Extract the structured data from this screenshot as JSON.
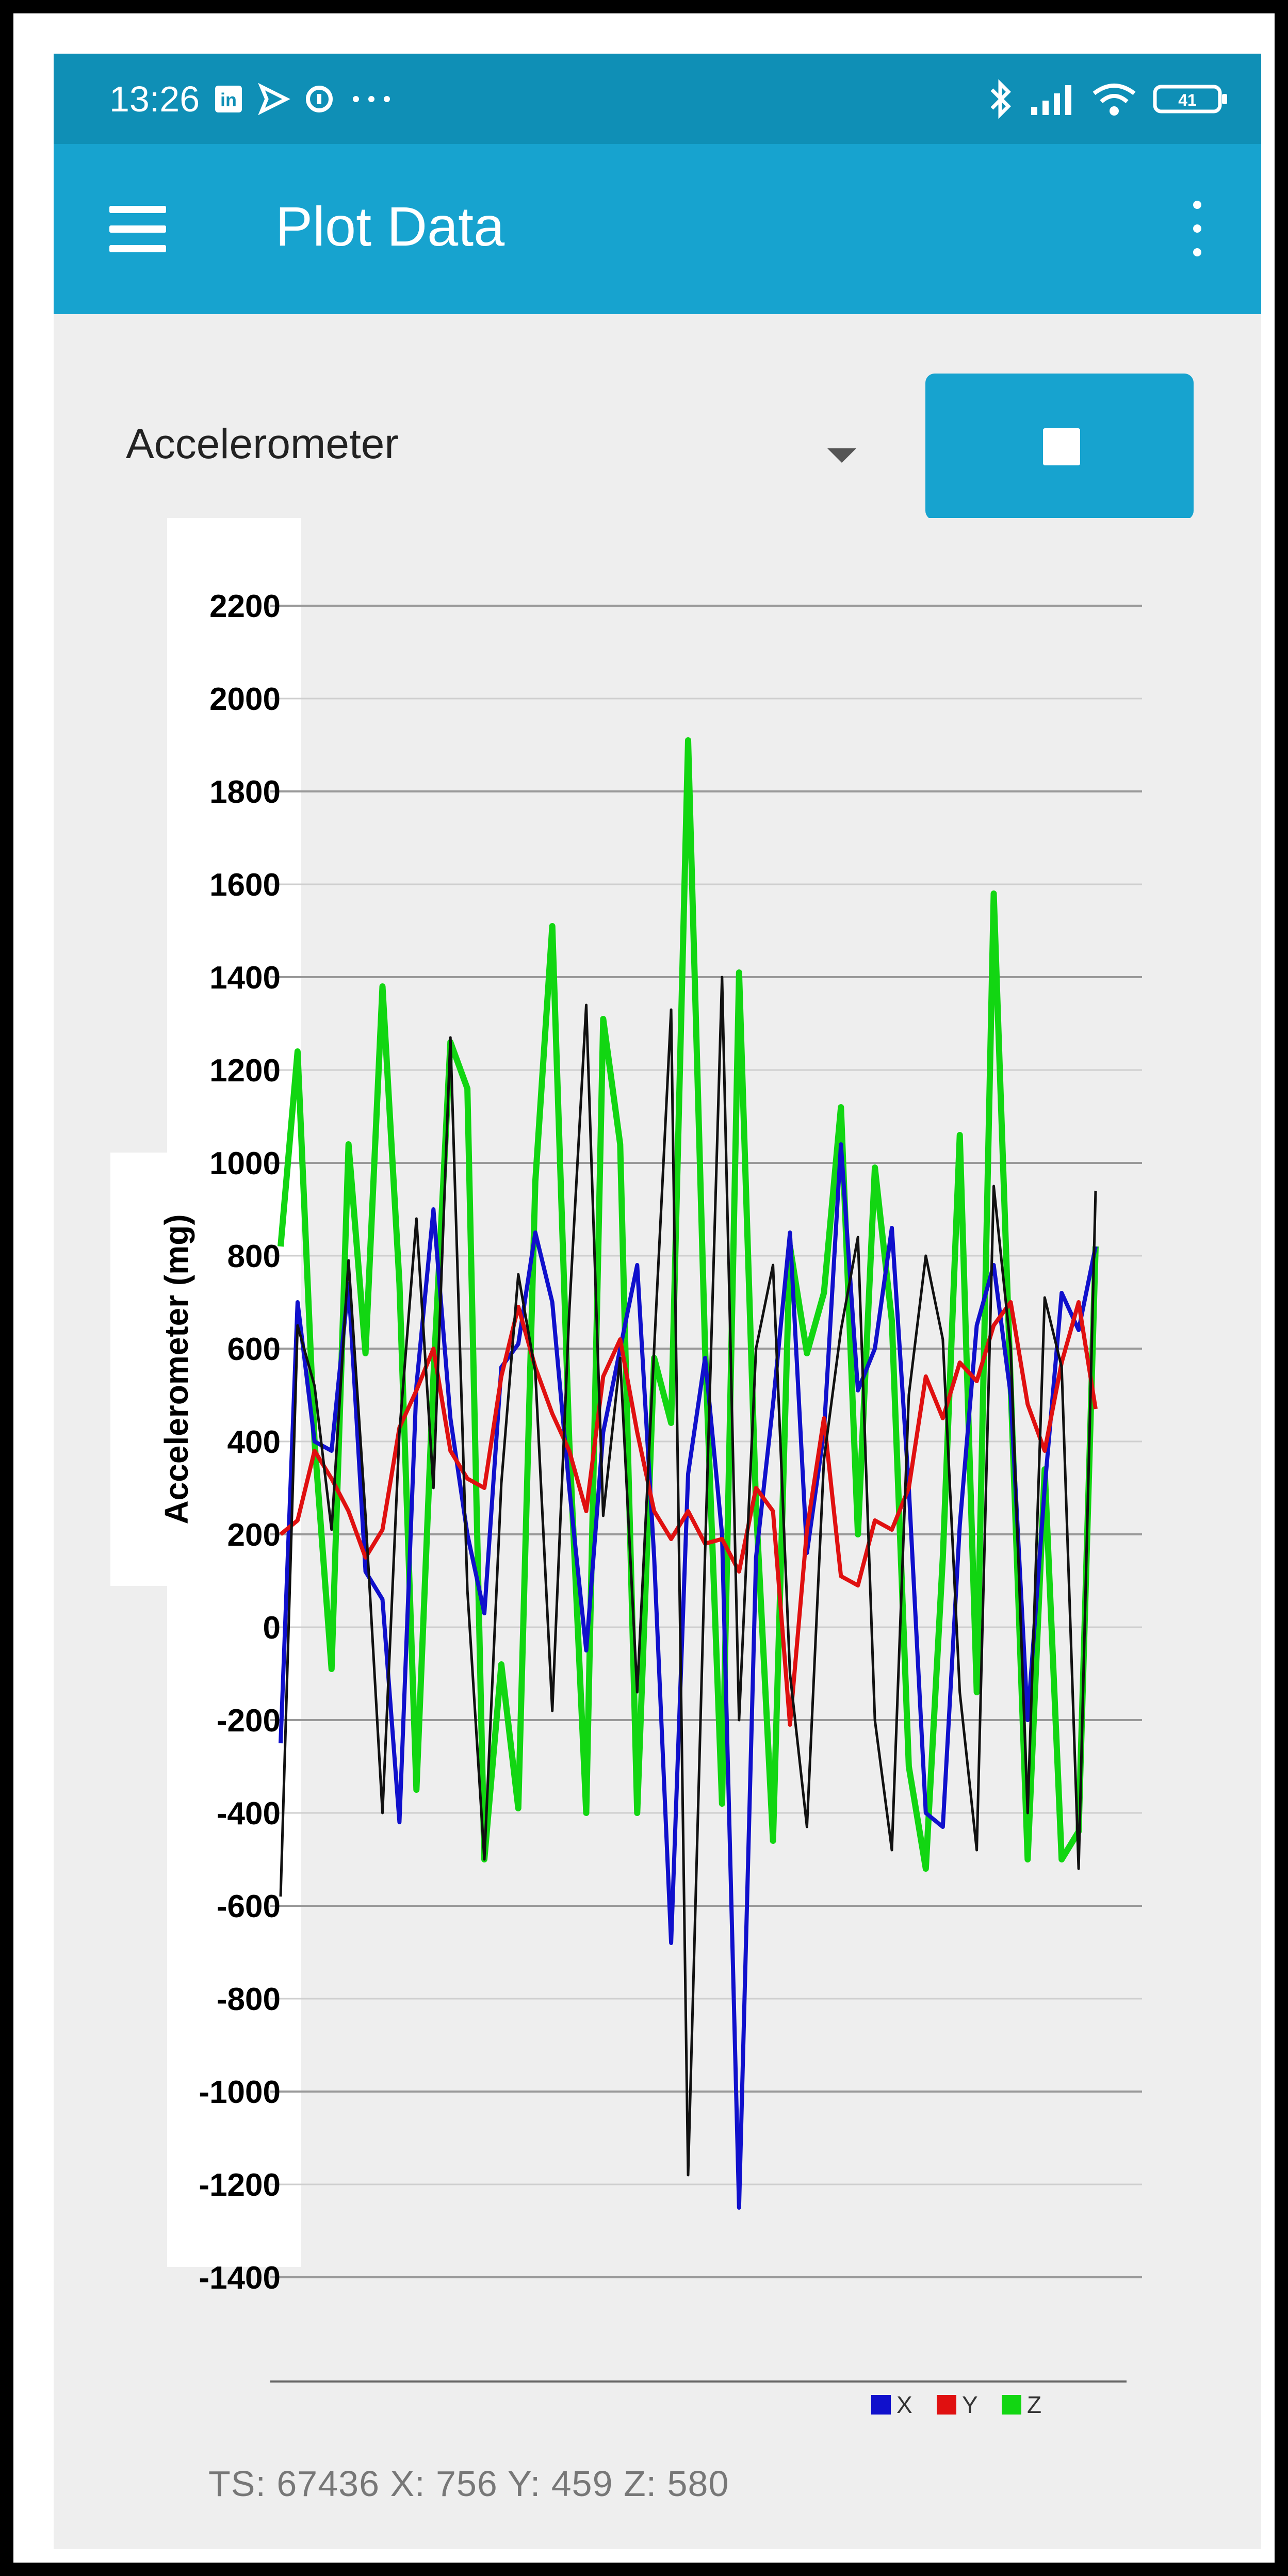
{
  "status_bar": {
    "time": "13:26",
    "left_icons": [
      "linkedin-icon",
      "navigation-icon",
      "vpn-icon",
      "more-dots-icon"
    ],
    "right_icons": [
      "bluetooth-icon",
      "signal-icon",
      "wifi-icon",
      "battery-icon"
    ],
    "battery_level": "41"
  },
  "app_bar": {
    "title": "Plot Data",
    "menu_icon": "hamburger-menu-icon",
    "overflow_icon": "more-vertical-icon",
    "color": "#17a3cf"
  },
  "controls": {
    "sensor_selected": "Accelerometer",
    "stop_icon": "stop-icon"
  },
  "chart_data": {
    "type": "line",
    "ylabel": "Accelerometer (mg)",
    "xlabel": "",
    "yticks": [
      "2200",
      "2000",
      "1800",
      "1600",
      "1400",
      "1200",
      "1000",
      "800",
      "600",
      "400",
      "200",
      "0",
      "-200",
      "-400",
      "-600",
      "-800",
      "-1000",
      "-1200",
      "-1400"
    ],
    "ylim": [
      -1500,
      2250
    ],
    "grid": true,
    "legend_position": "bottom-right",
    "series": [
      {
        "name": "X",
        "color": "#1010cc",
        "values": [
          -250,
          700,
          400,
          380,
          740,
          120,
          60,
          -420,
          520,
          900,
          450,
          200,
          30,
          560,
          610,
          850,
          700,
          300,
          -50,
          420,
          600,
          780,
          150,
          -680,
          330,
          580,
          200,
          -1250,
          150,
          480,
          850,
          160,
          420,
          1040,
          510,
          600,
          860,
          300,
          -400,
          -430,
          220,
          650,
          780,
          500,
          -200,
          300,
          720,
          640,
          820
        ]
      },
      {
        "name": "Y",
        "color": "#e01010",
        "values": [
          200,
          230,
          380,
          320,
          250,
          150,
          210,
          430,
          510,
          600,
          380,
          320,
          300,
          540,
          690,
          560,
          460,
          380,
          250,
          540,
          620,
          420,
          250,
          190,
          250,
          180,
          190,
          120,
          300,
          250,
          -210,
          210,
          450,
          110,
          90,
          230,
          210,
          300,
          540,
          450,
          570,
          530,
          650,
          700,
          480,
          380,
          570,
          700,
          470
        ]
      },
      {
        "name": "Z",
        "color": "#12d612",
        "values": [
          820,
          1240,
          400,
          -90,
          1040,
          590,
          1380,
          740,
          -350,
          540,
          1260,
          1160,
          -500,
          -80,
          -390,
          960,
          1510,
          400,
          -400,
          1310,
          1040,
          -400,
          580,
          440,
          1910,
          600,
          -380,
          1410,
          260,
          -460,
          820,
          590,
          720,
          1120,
          200,
          990,
          660,
          -300,
          -520,
          150,
          1060,
          -140,
          1580,
          520,
          -500,
          340,
          -500,
          -440,
          820
        ]
      },
      {
        "name": "",
        "color": "#111111",
        "values": [
          -580,
          650,
          520,
          210,
          790,
          240,
          -400,
          420,
          880,
          300,
          1270,
          80,
          -500,
          310,
          760,
          550,
          -180,
          680,
          1340,
          240,
          580,
          -140,
          600,
          1330,
          -1180,
          160,
          1400,
          -200,
          600,
          780,
          -100,
          -430,
          360,
          640,
          840,
          -200,
          -480,
          500,
          800,
          620,
          -140,
          -480,
          950,
          600,
          -400,
          710,
          560,
          -520,
          940
        ]
      }
    ],
    "legend": [
      "X",
      "Y",
      "Z"
    ]
  },
  "readout": {
    "text": "TS: 67436 X: 756 Y: 459 Z: 580"
  }
}
